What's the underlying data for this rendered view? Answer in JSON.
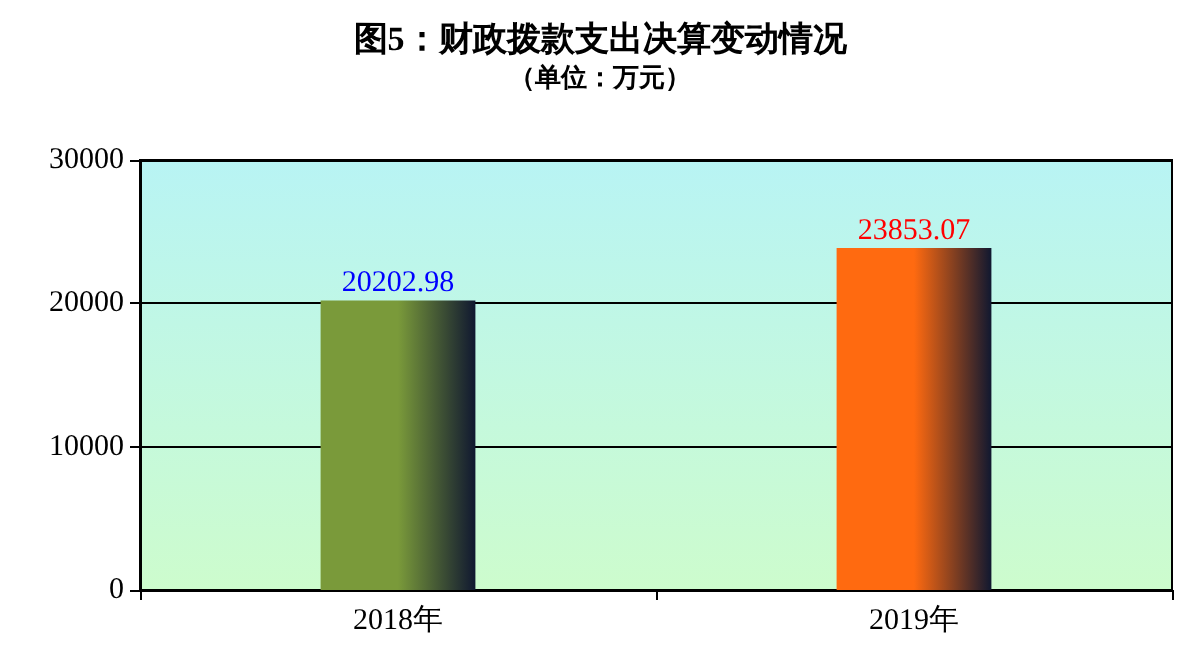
{
  "chart_data": {
    "type": "bar",
    "title": "图5：财政拨款支出决算变动情况",
    "subtitle": "（单位：万元）",
    "categories": [
      "2018年",
      "2019年"
    ],
    "values": [
      20202.98,
      23853.07
    ],
    "colors": [
      "#7a9a3a",
      "#ff6a10"
    ],
    "ylim": [
      0,
      30000
    ],
    "yticks": [
      0,
      10000,
      20000,
      30000
    ],
    "grid": "y",
    "data_labels": true
  }
}
